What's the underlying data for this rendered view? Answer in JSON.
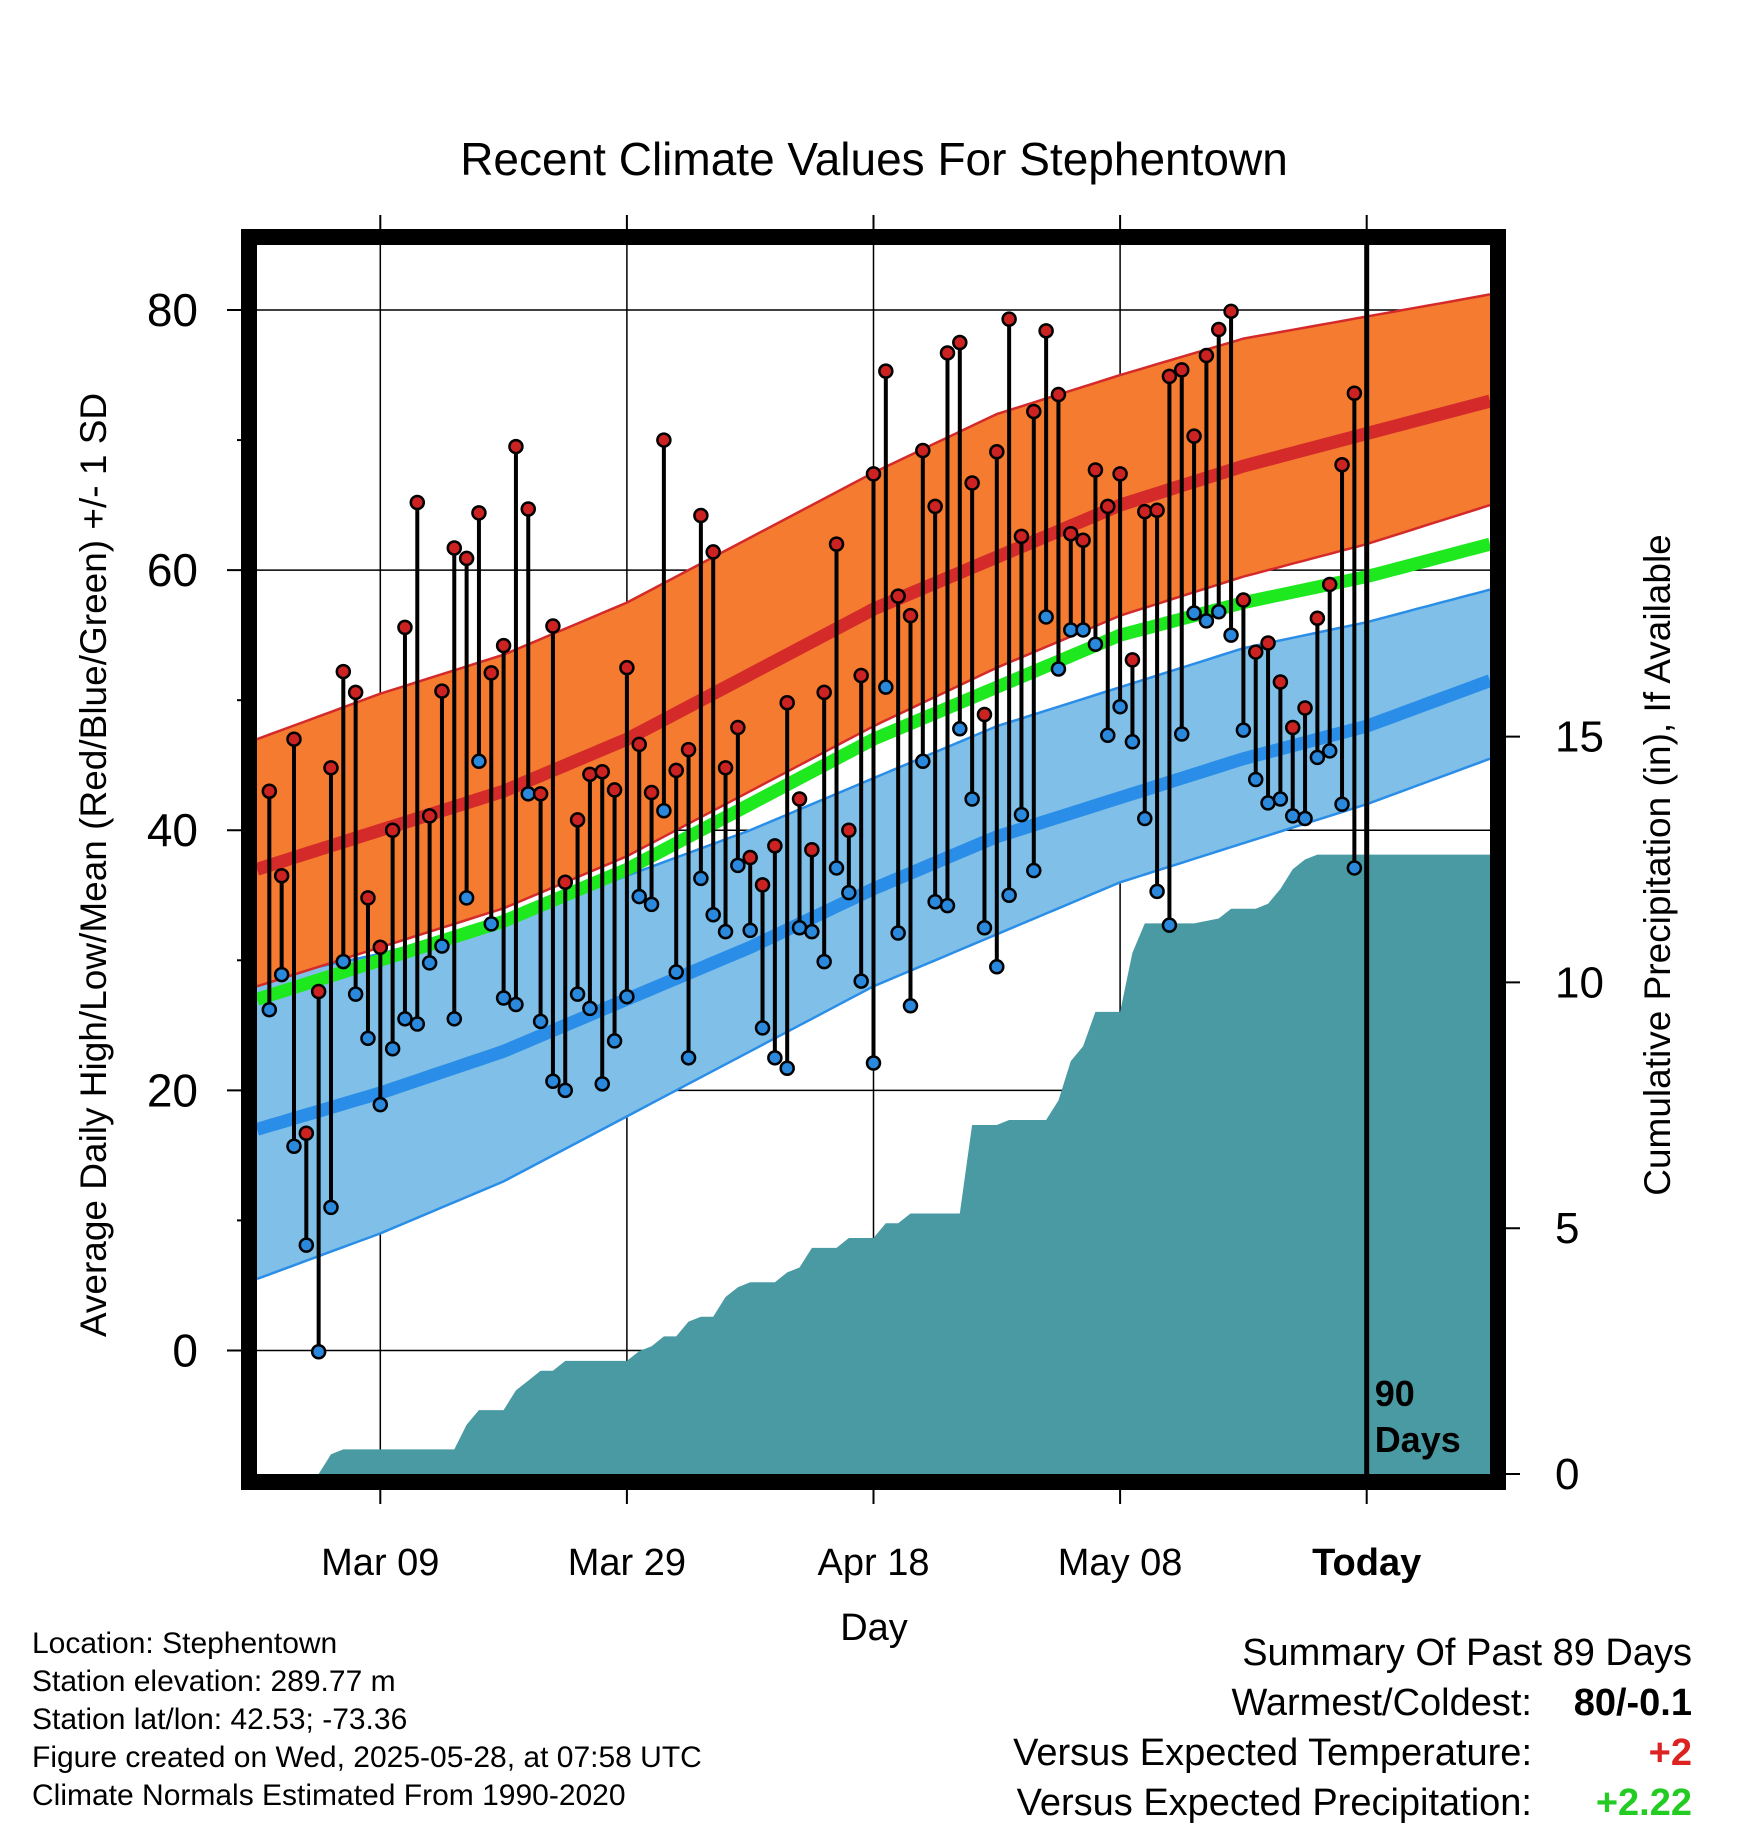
{
  "chart_data": {
    "type": "line",
    "title": "Recent Climate Values For Stephentown",
    "xlabel": "Day",
    "ylabel": "Average Daily High/Low/Mean (Red/Blue/Green) +/- 1 SD",
    "y2label": "Cumulative Precipitation (in), If Available",
    "ylim": [
      -9.5,
      85
    ],
    "y2lim": [
      0,
      25
    ],
    "xlim": [
      0,
      100
    ],
    "x_ticks": [
      {
        "day": 10,
        "label": "Mar 09"
      },
      {
        "day": 30,
        "label": "Mar 29"
      },
      {
        "day": 50,
        "label": "Apr 18"
      },
      {
        "day": 70,
        "label": "May 08"
      },
      {
        "day": 90,
        "label": "Today"
      }
    ],
    "y_ticks": [
      0,
      20,
      40,
      60,
      80
    ],
    "y2_ticks": [
      0,
      5,
      10,
      15
    ],
    "today_marker": {
      "day": 90,
      "label_line1": "90",
      "label_line2": "Days"
    },
    "colors": {
      "high_band": "#f47b30",
      "high_edge": "#d42a2a",
      "high_mean": "#d42a2a",
      "low_band": "#80c0e8",
      "low_edge": "#2a8ee8",
      "low_mean": "#2a8ee8",
      "avg_mean": "#1ee81e",
      "precip": "#4a9aa4",
      "high_dot": "#cc2222",
      "low_dot": "#2a88dd"
    },
    "normals": {
      "days": [
        0,
        10,
        20,
        30,
        40,
        50,
        60,
        70,
        80,
        90,
        100
      ],
      "high_mean": [
        37,
        40,
        43,
        47,
        52,
        57,
        61,
        65,
        68,
        70.5,
        73
      ],
      "high_upper": [
        47,
        50.5,
        53.5,
        57.5,
        62.5,
        67.5,
        72,
        75,
        77.8,
        79.5,
        81.2
      ],
      "high_lower": [
        28,
        31,
        34,
        38,
        43,
        48,
        52.5,
        56.5,
        59.5,
        62,
        65
      ],
      "avg_mean": [
        27,
        30,
        33,
        37,
        42,
        47,
        51,
        55,
        57.5,
        59.5,
        62
      ],
      "low_mean": [
        17,
        19.8,
        23,
        27,
        31,
        35.5,
        39.5,
        42.5,
        45.5,
        48,
        51.5
      ],
      "low_upper": [
        28.5,
        30.5,
        33,
        36.5,
        40,
        44,
        48,
        51,
        54,
        56,
        58.5
      ],
      "low_lower": [
        5.5,
        9,
        13,
        18,
        23,
        28,
        32,
        36,
        39,
        42,
        45.5
      ]
    },
    "daily_high": [
      43,
      36.5,
      47,
      16.7,
      27.6,
      44.8,
      52.2,
      50.6,
      34.8,
      31,
      40,
      55.6,
      65.2,
      41.1,
      50.7,
      61.7,
      60.9,
      64.4,
      52.1,
      54.2,
      69.5,
      64.7,
      42.8,
      55.7,
      36,
      40.8,
      44.3,
      44.5,
      43.1,
      52.5,
      46.6,
      42.9,
      70,
      44.6,
      46.2,
      64.2,
      61.4,
      44.8,
      47.9,
      37.9,
      35.8,
      38.8,
      49.8,
      42.4,
      38.5,
      50.6,
      62,
      40,
      51.9,
      67.4,
      75.3,
      58,
      56.5,
      69.2,
      64.9,
      76.7,
      77.5,
      66.7,
      48.9,
      69.1,
      79.3,
      62.6,
      72.2,
      78.4,
      73.5,
      62.8,
      62.3,
      67.7,
      64.9,
      67.4,
      53.1,
      64.5,
      64.6,
      74.9,
      75.4,
      70.3,
      76.5,
      78.5,
      79.9,
      57.7,
      53.7,
      54.4,
      51.4,
      47.9,
      49.4,
      56.3,
      58.9,
      68.1,
      73.6
    ],
    "daily_low": [
      26.2,
      28.9,
      15.7,
      8.1,
      -0.1,
      11,
      29.9,
      27.4,
      24,
      18.9,
      23.2,
      25.5,
      25.1,
      29.8,
      31.1,
      25.5,
      34.8,
      45.3,
      32.8,
      27.1,
      26.6,
      42.8,
      25.3,
      20.7,
      20,
      27.4,
      26.3,
      20.5,
      23.8,
      27.2,
      34.9,
      34.3,
      41.5,
      29.1,
      22.5,
      36.3,
      33.5,
      32.2,
      37.3,
      32.3,
      24.8,
      22.5,
      21.7,
      32.5,
      32.2,
      29.9,
      37.1,
      35.2,
      28.4,
      22.1,
      51,
      32.1,
      26.5,
      45.3,
      34.5,
      34.2,
      47.8,
      42.4,
      32.5,
      29.5,
      35,
      41.2,
      36.9,
      56.4,
      52.4,
      55.4,
      55.4,
      54.3,
      47.3,
      49.5,
      46.8,
      40.9,
      35.3,
      32.7,
      47.4,
      56.7,
      56.1,
      56.8,
      55,
      47.7,
      43.9,
      42.1,
      42.4,
      41.1,
      40.9,
      45.6,
      46.1,
      42,
      37.1
    ],
    "precip_cumulative": [
      [
        0,
        0
      ],
      [
        5,
        0
      ],
      [
        5.5,
        0.2
      ],
      [
        6,
        0.4
      ],
      [
        7,
        0.5
      ],
      [
        10,
        0.5
      ],
      [
        14,
        0.5
      ],
      [
        16,
        0.5
      ],
      [
        17,
        1
      ],
      [
        18,
        1.3
      ],
      [
        20,
        1.3
      ],
      [
        21,
        1.7
      ],
      [
        22,
        1.9
      ],
      [
        23,
        2.1
      ],
      [
        24,
        2.1
      ],
      [
        25,
        2.3
      ],
      [
        26,
        2.3
      ],
      [
        30,
        2.3
      ],
      [
        31,
        2.5
      ],
      [
        32,
        2.6
      ],
      [
        33,
        2.8
      ],
      [
        34,
        2.8
      ],
      [
        35,
        3.1
      ],
      [
        36,
        3.2
      ],
      [
        37,
        3.2
      ],
      [
        38,
        3.6
      ],
      [
        39,
        3.8
      ],
      [
        40,
        3.9
      ],
      [
        42,
        3.9
      ],
      [
        43,
        4.1
      ],
      [
        44,
        4.2
      ],
      [
        45,
        4.6
      ],
      [
        46,
        4.6
      ],
      [
        47,
        4.6
      ],
      [
        48,
        4.8
      ],
      [
        50,
        4.8
      ],
      [
        51,
        5.1
      ],
      [
        52,
        5.1
      ],
      [
        53,
        5.3
      ],
      [
        56,
        5.3
      ],
      [
        57,
        5.3
      ],
      [
        58,
        7.1
      ],
      [
        60,
        7.1
      ],
      [
        61,
        7.2
      ],
      [
        64,
        7.2
      ],
      [
        65,
        7.6
      ],
      [
        66,
        8.4
      ],
      [
        67,
        8.7
      ],
      [
        68,
        9.4
      ],
      [
        70,
        9.4
      ],
      [
        71,
        10.6
      ],
      [
        72,
        11.2
      ],
      [
        75,
        11.2
      ],
      [
        76,
        11.2
      ],
      [
        78,
        11.3
      ],
      [
        79,
        11.5
      ],
      [
        81,
        11.5
      ],
      [
        82,
        11.6
      ],
      [
        83,
        11.9
      ],
      [
        84,
        12.3
      ],
      [
        85,
        12.5
      ],
      [
        86,
        12.6
      ],
      [
        88,
        12.6
      ],
      [
        90,
        12.6
      ],
      [
        100,
        12.6
      ]
    ]
  },
  "info": {
    "location": "Location: Stephentown",
    "elevation": "Station elevation: 289.77 m",
    "latlon": "Station lat/lon: 42.53; -73.36",
    "created": "Figure created on Wed, 2025-05-28, at 07:58 UTC",
    "normals": "Climate Normals Estimated From 1990-2020"
  },
  "summary": {
    "heading": "Summary Of Past 89 Days",
    "warmest_label": "Warmest/Coldest:",
    "warmest_value": "80/-0.1",
    "temp_label": "Versus Expected Temperature:",
    "temp_value": "+2",
    "temp_color": "#dd2222",
    "precip_label": "Versus Expected Precipitation:",
    "precip_value": "+2.22",
    "precip_color": "#22cc22"
  }
}
